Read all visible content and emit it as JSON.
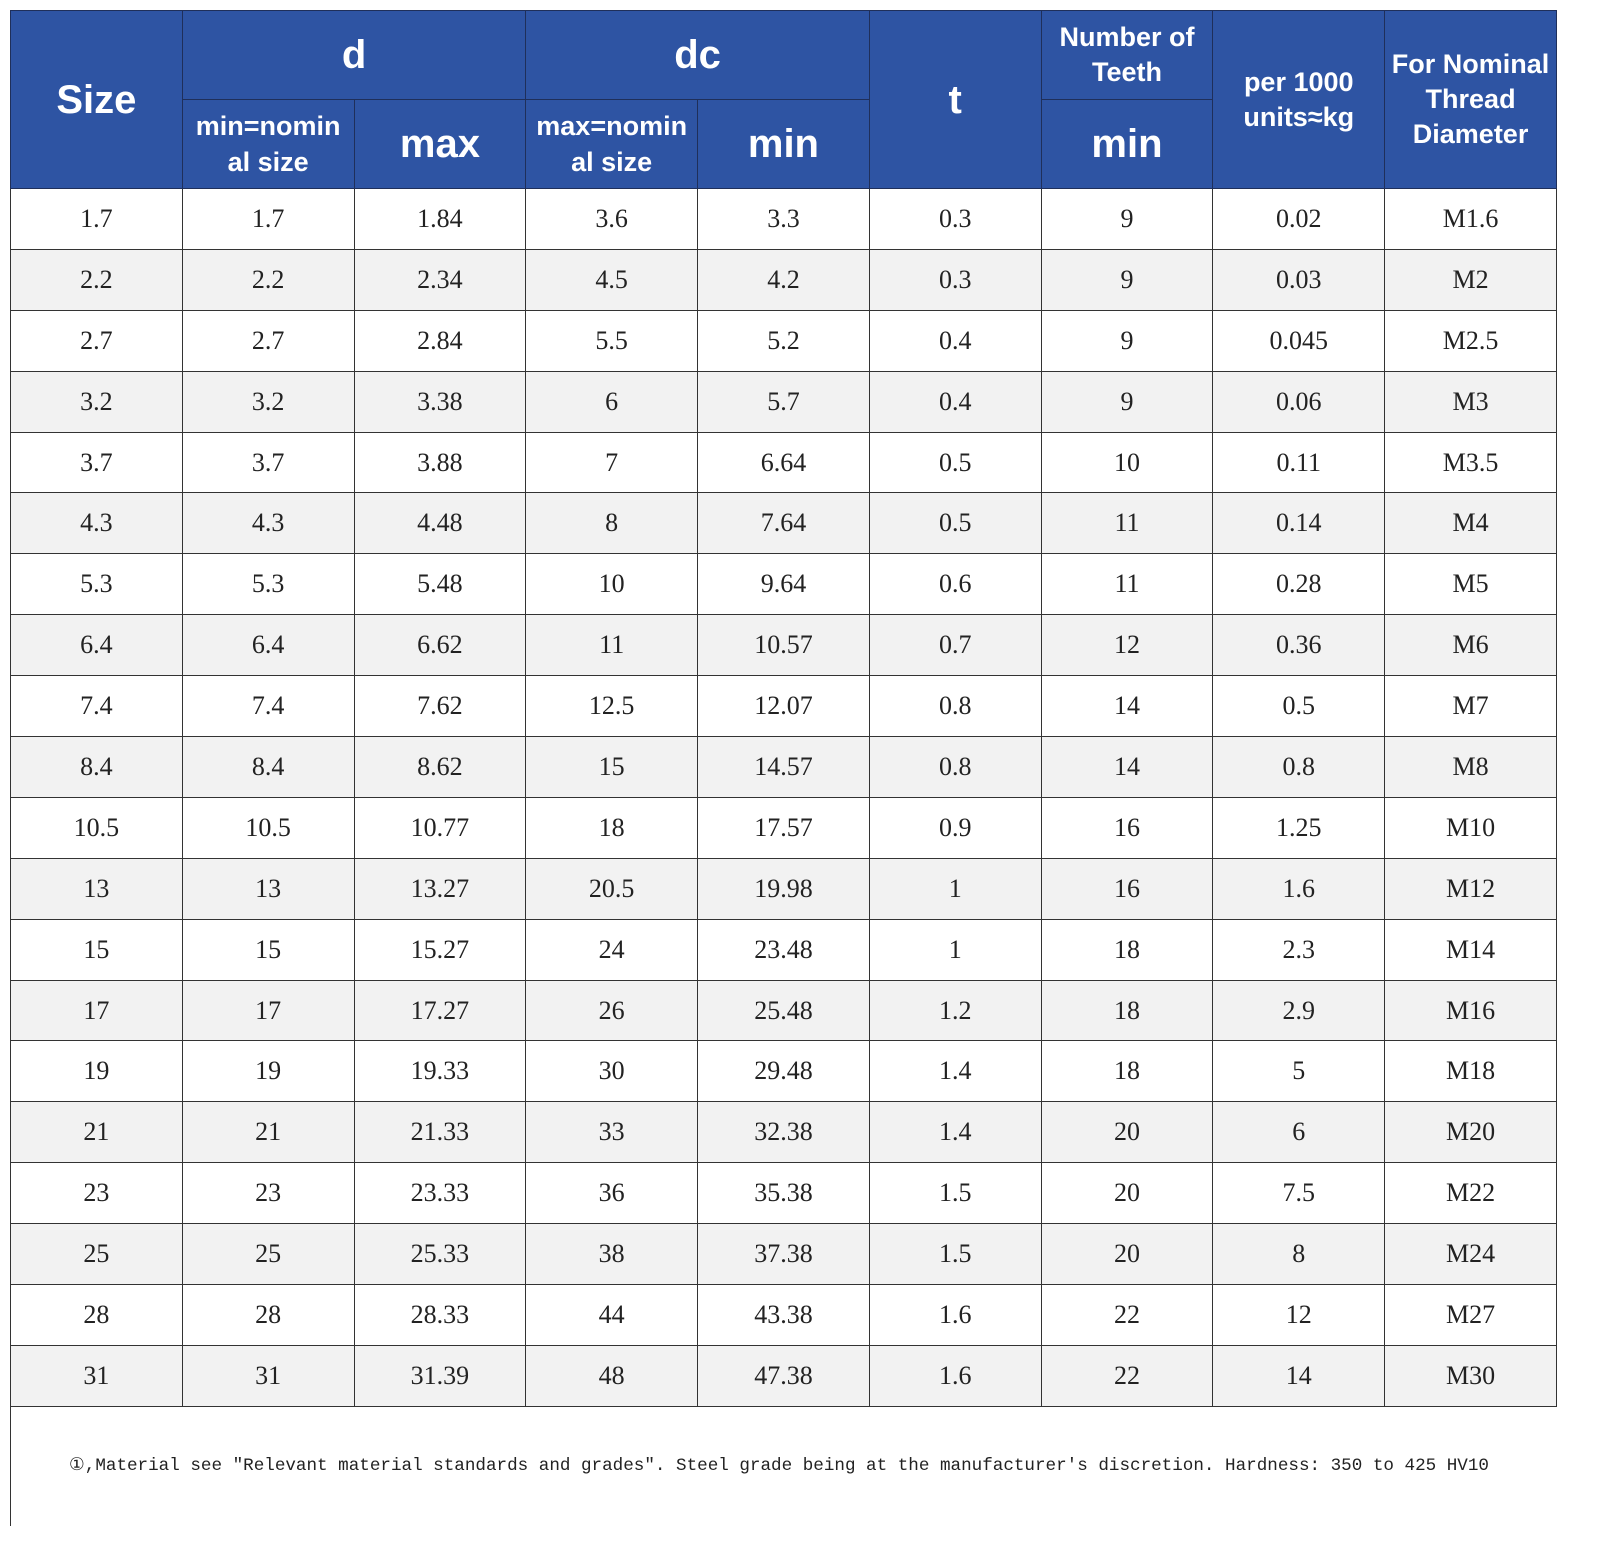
{
  "table": {
    "header": {
      "top": [
        "Size",
        "d",
        "dc",
        "t",
        "Number of Teeth",
        "per 1000 units≈kg",
        "For Nominal Thread Diameter"
      ],
      "sub": [
        "min=nominal size",
        "max",
        "max=nominal size",
        "min",
        "min"
      ]
    },
    "rows": [
      [
        "1.7",
        "1.7",
        "1.84",
        "3.6",
        "3.3",
        "0.3",
        "9",
        "0.02",
        "M1.6"
      ],
      [
        "2.2",
        "2.2",
        "2.34",
        "4.5",
        "4.2",
        "0.3",
        "9",
        "0.03",
        "M2"
      ],
      [
        "2.7",
        "2.7",
        "2.84",
        "5.5",
        "5.2",
        "0.4",
        "9",
        "0.045",
        "M2.5"
      ],
      [
        "3.2",
        "3.2",
        "3.38",
        "6",
        "5.7",
        "0.4",
        "9",
        "0.06",
        "M3"
      ],
      [
        "3.7",
        "3.7",
        "3.88",
        "7",
        "6.64",
        "0.5",
        "10",
        "0.11",
        "M3.5"
      ],
      [
        "4.3",
        "4.3",
        "4.48",
        "8",
        "7.64",
        "0.5",
        "11",
        "0.14",
        "M4"
      ],
      [
        "5.3",
        "5.3",
        "5.48",
        "10",
        "9.64",
        "0.6",
        "11",
        "0.28",
        "M5"
      ],
      [
        "6.4",
        "6.4",
        "6.62",
        "11",
        "10.57",
        "0.7",
        "12",
        "0.36",
        "M6"
      ],
      [
        "7.4",
        "7.4",
        "7.62",
        "12.5",
        "12.07",
        "0.8",
        "14",
        "0.5",
        "M7"
      ],
      [
        "8.4",
        "8.4",
        "8.62",
        "15",
        "14.57",
        "0.8",
        "14",
        "0.8",
        "M8"
      ],
      [
        "10.5",
        "10.5",
        "10.77",
        "18",
        "17.57",
        "0.9",
        "16",
        "1.25",
        "M10"
      ],
      [
        "13",
        "13",
        "13.27",
        "20.5",
        "19.98",
        "1",
        "16",
        "1.6",
        "M12"
      ],
      [
        "15",
        "15",
        "15.27",
        "24",
        "23.48",
        "1",
        "18",
        "2.3",
        "M14"
      ],
      [
        "17",
        "17",
        "17.27",
        "26",
        "25.48",
        "1.2",
        "18",
        "2.9",
        "M16"
      ],
      [
        "19",
        "19",
        "19.33",
        "30",
        "29.48",
        "1.4",
        "18",
        "5",
        "M18"
      ],
      [
        "21",
        "21",
        "21.33",
        "33",
        "32.38",
        "1.4",
        "20",
        "6",
        "M20"
      ],
      [
        "23",
        "23",
        "23.33",
        "36",
        "35.38",
        "1.5",
        "20",
        "7.5",
        "M22"
      ],
      [
        "25",
        "25",
        "25.33",
        "38",
        "37.38",
        "1.5",
        "20",
        "8",
        "M24"
      ],
      [
        "28",
        "28",
        "28.33",
        "44",
        "43.38",
        "1.6",
        "22",
        "12",
        "M27"
      ],
      [
        "31",
        "31",
        "31.39",
        "48",
        "47.38",
        "1.6",
        "22",
        "14",
        "M30"
      ]
    ]
  },
  "note": "①,Material see \"Relevant material standards and grades\". Steel grade being at the manufacturer's discretion. Hardness: 350 to 425 HV10"
}
